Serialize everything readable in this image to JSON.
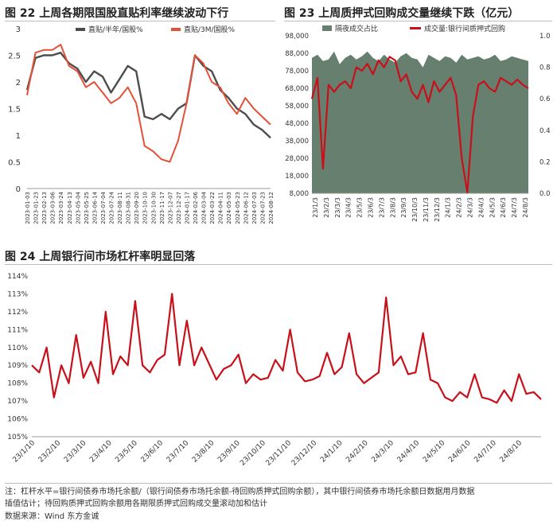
{
  "charts": {
    "c22": {
      "title": "图 22  上周各期限国股直贴利率继续波动下行",
      "type": "line",
      "ylim": [
        0,
        3
      ],
      "yticks": [
        "0",
        "0.5",
        "1",
        "1.5",
        "2",
        "2.5",
        "3"
      ],
      "legend": [
        "直贴/半年/国股%",
        "直贴/3M/国股%"
      ],
      "colors": [
        "#4d4d4d",
        "#e55038"
      ],
      "x_labels": [
        "2023-01-03",
        "2023-01-23",
        "2023-02-13",
        "2023-03-06",
        "2023-03-24",
        "2023-04-13",
        "2023-05-04",
        "2023-05-25",
        "2023-06-14",
        "2023-07-04",
        "2023-07-24",
        "2023-08-11",
        "2023-08-31",
        "2023-09-20",
        "2023-10-10",
        "2023-10-30",
        "2023-11-17",
        "2023-12-07",
        "2023-12-27",
        "2024-01-17",
        "2024-02-06",
        "2024-03-04",
        "2024-03-22",
        "2024-04-11",
        "2024-05-03",
        "2024-05-23",
        "2024-06-12",
        "2024-07-03",
        "2024-07-23",
        "2024-08-12"
      ],
      "series": [
        {
          "name": "直贴/半年/国股%",
          "points": [
            [
              0,
              1.85
            ],
            [
              1,
              2.45
            ],
            [
              2,
              2.5
            ],
            [
              3,
              2.5
            ],
            [
              4,
              2.55
            ],
            [
              5,
              2.35
            ],
            [
              6,
              2.25
            ],
            [
              7,
              2.0
            ],
            [
              8,
              2.2
            ],
            [
              9,
              2.1
            ],
            [
              10,
              1.8
            ],
            [
              11,
              2.05
            ],
            [
              12,
              2.3
            ],
            [
              13,
              2.2
            ],
            [
              14,
              1.35
            ],
            [
              15,
              1.3
            ],
            [
              16,
              1.4
            ],
            [
              17,
              1.3
            ],
            [
              18,
              1.5
            ],
            [
              19,
              1.6
            ],
            [
              20,
              2.5
            ],
            [
              21,
              2.3
            ],
            [
              22,
              2.2
            ],
            [
              23,
              1.85
            ],
            [
              24,
              1.7
            ],
            [
              25,
              1.5
            ],
            [
              26,
              1.4
            ],
            [
              27,
              1.2
            ],
            [
              28,
              1.1
            ],
            [
              29,
              0.95
            ]
          ]
        },
        {
          "name": "直贴/3M/国股%",
          "points": [
            [
              0,
              1.75
            ],
            [
              1,
              2.55
            ],
            [
              2,
              2.6
            ],
            [
              3,
              2.6
            ],
            [
              4,
              2.7
            ],
            [
              5,
              2.3
            ],
            [
              6,
              2.2
            ],
            [
              7,
              1.9
            ],
            [
              8,
              2.0
            ],
            [
              9,
              1.8
            ],
            [
              10,
              1.6
            ],
            [
              11,
              1.7
            ],
            [
              12,
              1.9
            ],
            [
              13,
              1.6
            ],
            [
              14,
              0.8
            ],
            [
              15,
              0.7
            ],
            [
              16,
              0.55
            ],
            [
              17,
              0.5
            ],
            [
              18,
              0.9
            ],
            [
              19,
              1.6
            ],
            [
              20,
              2.5
            ],
            [
              21,
              2.35
            ],
            [
              22,
              2.0
            ],
            [
              23,
              1.9
            ],
            [
              24,
              1.6
            ],
            [
              25,
              1.4
            ],
            [
              26,
              1.7
            ],
            [
              27,
              1.5
            ],
            [
              28,
              1.35
            ],
            [
              29,
              1.2
            ]
          ]
        }
      ]
    },
    "c23": {
      "title": "图 23  上周质押式回购成交量继续下跌（亿元）",
      "type": "area+line",
      "ylim": [
        8000,
        98000
      ],
      "ylim_right": [
        0,
        1
      ],
      "yticks_left": [
        "8,000",
        "18,000",
        "28,000",
        "38,000",
        "48,000",
        "58,000",
        "68,000",
        "78,000",
        "88,000",
        "98,000"
      ],
      "yticks_right": [
        "0.0",
        "0.2",
        "0.4",
        "0.6",
        "0.8",
        "1.0"
      ],
      "legend": [
        "隔夜成交占比",
        "成交量:银行间质押式回购"
      ],
      "colors": [
        "#667f6e",
        "#c8101a"
      ],
      "x_labels": [
        "23/1/3",
        "23/2/3",
        "23/3/3",
        "23/4/3",
        "23/5/3",
        "23/6/3",
        "23/7/3",
        "23/8/3",
        "23/9/3",
        "23/10/3",
        "23/11/3",
        "23/12/3",
        "24/1/3",
        "24/2/3",
        "24/3/3",
        "24/4/3",
        "24/5/3",
        "24/6/3",
        "24/7/3",
        "24/8/3"
      ],
      "overnight_share": [
        0.86,
        0.88,
        0.84,
        0.85,
        0.9,
        0.82,
        0.86,
        0.88,
        0.85,
        0.87,
        0.9,
        0.86,
        0.84,
        0.88,
        0.85,
        0.83,
        0.87,
        0.89,
        0.86,
        0.85,
        0.8,
        0.88,
        0.86,
        0.84,
        0.87,
        0.86,
        0.83,
        0.88,
        0.85,
        0.86,
        0.87,
        0.85,
        0.86,
        0.88,
        0.84,
        0.85,
        0.87,
        0.86,
        0.85,
        0.84
      ],
      "volume": [
        62000,
        74000,
        22000,
        70000,
        66000,
        70000,
        72000,
        68000,
        80000,
        78000,
        82000,
        76000,
        84000,
        80000,
        86000,
        84000,
        72000,
        76000,
        66000,
        62000,
        70000,
        60000,
        72000,
        66000,
        70000,
        74000,
        64000,
        28000,
        8500,
        52000,
        70000,
        72000,
        68000,
        66000,
        74000,
        72000,
        70000,
        73000,
        70000,
        68000
      ]
    },
    "c24": {
      "title": "图 24  上周银行间市场杠杆率明显回落",
      "type": "line",
      "ylim": [
        105,
        114
      ],
      "yticks": [
        "105%",
        "106%",
        "107%",
        "108%",
        "109%",
        "110%",
        "111%",
        "112%",
        "113%",
        "114%"
      ],
      "color": "#c8101a",
      "x_labels": [
        "23/1/10",
        "23/2/10",
        "23/3/10",
        "23/4/10",
        "23/5/10",
        "23/6/10",
        "23/7/10",
        "23/8/10",
        "23/9/10",
        "23/10/10",
        "23/11/10",
        "23/12/10",
        "24/1/10",
        "24/2/10",
        "24/3/10",
        "24/4/10",
        "24/5/10",
        "24/6/10",
        "24/7/10",
        "24/8/10"
      ],
      "values": [
        109.0,
        108.6,
        110.0,
        107.2,
        109.0,
        108.0,
        110.7,
        108.3,
        109.2,
        108.0,
        112.0,
        108.5,
        109.5,
        109.0,
        112.6,
        109.0,
        108.6,
        109.3,
        109.6,
        113.0,
        109.0,
        111.5,
        109.0,
        110.0,
        109.1,
        108.2,
        108.8,
        109.0,
        109.6,
        108.0,
        108.5,
        108.2,
        108.3,
        109.3,
        108.7,
        111.0,
        108.6,
        108.1,
        108.2,
        108.4,
        109.7,
        108.5,
        108.9,
        110.8,
        108.5,
        108.0,
        108.3,
        108.6,
        112.8,
        109.0,
        109.5,
        108.5,
        108.6,
        110.8,
        108.2,
        108.0,
        107.2,
        107.0,
        107.5,
        107.2,
        108.5,
        107.2,
        107.1,
        106.9,
        107.6,
        107.0,
        108.5,
        107.4,
        107.5,
        107.1
      ]
    }
  },
  "notes": {
    "line1": "注：杠杆水平=银行间债券市场托余额/（银行间债券市场托余额-待回购质押式回购余额），其中银行间债券市场托余额日数据用月数据",
    "line2": "插值估计；待回购质押式回购余额用各期限质押式回购成交量滚动加和估计",
    "source": "数据来源：Wind  东方金诚"
  }
}
